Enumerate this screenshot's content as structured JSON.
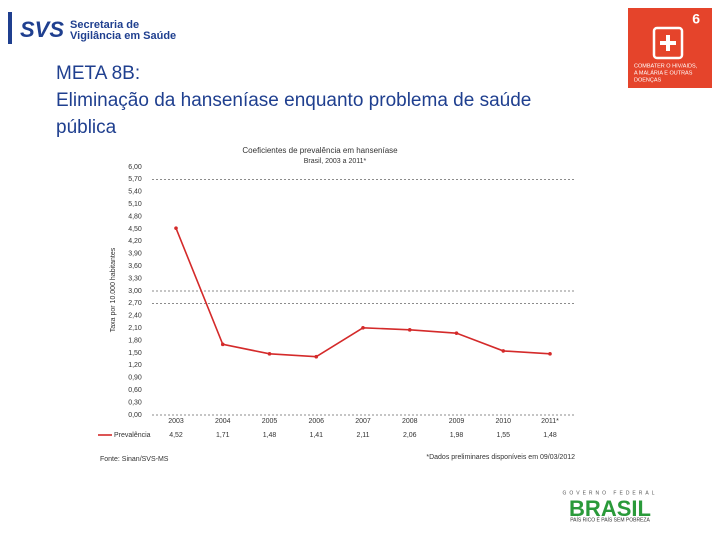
{
  "header": {
    "org_logo": "SVS",
    "org_name_1": "Secretaria de",
    "org_name_2": "Vigilância em Saúde",
    "meta": "META 8B:",
    "heading": "Eliminação da hanseníase enquanto problema de saúde",
    "heading_2": "pública"
  },
  "goal_icon": {
    "number": "6",
    "text_1": "COMBATER O HIV/AIDS,",
    "text_2": "A MALÁRIA E OUTRAS",
    "text_3": "DOENÇAS"
  },
  "footer_logo": {
    "top": "GOVERNO FEDERAL",
    "name": "BRASIL",
    "motto": "PAÍS RICO É PAÍS SEM POBREZA"
  },
  "chart_data": {
    "type": "line",
    "title": "Coeficientes de prevalência em hanseníase",
    "subtitle": "Brasil, 2003 a 2011*",
    "y_label": "Taxa por 10.000 habitantes",
    "categories": [
      "2003",
      "2004",
      "2005",
      "2006",
      "2007",
      "2008",
      "2009",
      "2010",
      "2011*"
    ],
    "series": [
      {
        "name": "Prevalência",
        "color": "#d42a2a",
        "values": [
          4.52,
          1.71,
          1.48,
          1.41,
          2.11,
          2.06,
          1.98,
          1.55,
          1.48
        ],
        "value_labels": [
          "4,52",
          "1,71",
          "1,48",
          "1,41",
          "2,11",
          "2,06",
          "1,98",
          "1,55",
          "1,48"
        ]
      }
    ],
    "ylim": [
      0,
      6
    ],
    "yticks": [
      {
        "value": 0,
        "label": "0,00"
      },
      {
        "value": 0.3,
        "label": "0,30"
      },
      {
        "value": 0.6,
        "label": "0,60"
      },
      {
        "value": 0.9,
        "label": "0,90"
      },
      {
        "value": 1.2,
        "label": "1,20"
      },
      {
        "value": 1.5,
        "label": "1,50"
      },
      {
        "value": 1.8,
        "label": "1,80"
      },
      {
        "value": 2.1,
        "label": "2,10"
      },
      {
        "value": 2.4,
        "label": "2,40"
      },
      {
        "value": 2.7,
        "label": "2,70"
      },
      {
        "value": 3,
        "label": "3,00"
      },
      {
        "value": 3.3,
        "label": "3,30"
      },
      {
        "value": 3.6,
        "label": "3,60"
      },
      {
        "value": 3.9,
        "label": "3,90"
      },
      {
        "value": 4.2,
        "label": "4,20"
      },
      {
        "value": 4.5,
        "label": "4,50"
      },
      {
        "value": 4.8,
        "label": "4,80"
      },
      {
        "value": 5.1,
        "label": "5,10"
      },
      {
        "value": 5.4,
        "label": "5,40"
      },
      {
        "value": 5.7,
        "label": "5,70"
      },
      {
        "value": 6,
        "label": "6,00"
      }
    ],
    "dashed_lines": [
      5.7,
      3,
      2.7,
      0
    ],
    "source": "Fonte: Sinan/SVS-MS",
    "note": "*Dados preliminares disponíveis em 09/03/2012"
  }
}
